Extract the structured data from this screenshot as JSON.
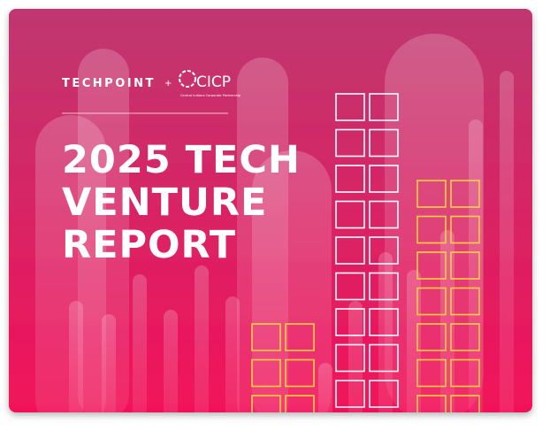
{
  "header": {
    "brand": "TECHPOINT",
    "separator": "+",
    "partner": "CICP",
    "partner_tagline": "Central Indiana Corporate Partnership"
  },
  "title": {
    "lines": [
      "2025 TECH",
      "VENTURE",
      "REPORT"
    ]
  }
}
